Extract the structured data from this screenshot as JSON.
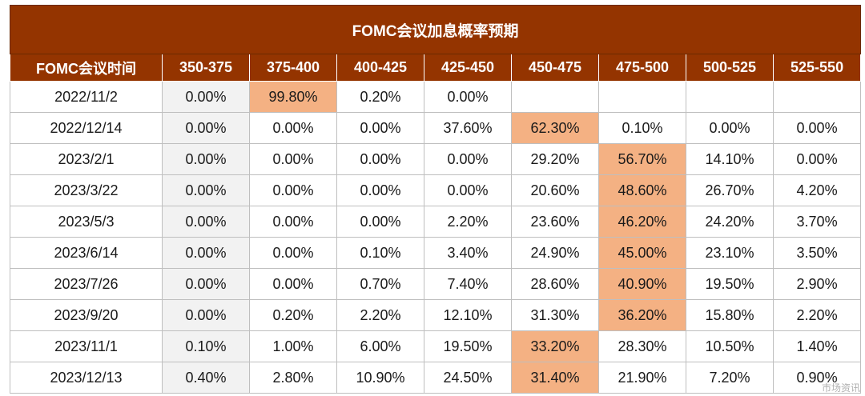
{
  "chart_data": {
    "type": "table",
    "title": "FOMC会议加息概率预期",
    "columns": [
      "FOMC会议时间",
      "350-375",
      "375-400",
      "400-425",
      "425-450",
      "450-475",
      "475-500",
      "500-525",
      "525-550"
    ],
    "rows": [
      {
        "date": "2022/11/2",
        "values": [
          "0.00%",
          "99.80%",
          "0.20%",
          "0.00%",
          "",
          "",
          "",
          ""
        ],
        "highlight": 1
      },
      {
        "date": "2022/12/14",
        "values": [
          "0.00%",
          "0.00%",
          "0.00%",
          "37.60%",
          "62.30%",
          "0.10%",
          "0.00%",
          "0.00%"
        ],
        "highlight": 4
      },
      {
        "date": "2023/2/1",
        "values": [
          "0.00%",
          "0.00%",
          "0.00%",
          "0.00%",
          "29.20%",
          "56.70%",
          "14.10%",
          "0.00%"
        ],
        "highlight": 5
      },
      {
        "date": "2023/3/22",
        "values": [
          "0.00%",
          "0.00%",
          "0.00%",
          "0.00%",
          "20.60%",
          "48.60%",
          "26.70%",
          "4.20%"
        ],
        "highlight": 5
      },
      {
        "date": "2023/5/3",
        "values": [
          "0.00%",
          "0.00%",
          "0.00%",
          "2.20%",
          "23.60%",
          "46.20%",
          "24.20%",
          "3.70%"
        ],
        "highlight": 5
      },
      {
        "date": "2023/6/14",
        "values": [
          "0.00%",
          "0.00%",
          "0.10%",
          "3.40%",
          "24.90%",
          "45.00%",
          "23.10%",
          "3.50%"
        ],
        "highlight": 5
      },
      {
        "date": "2023/7/26",
        "values": [
          "0.00%",
          "0.00%",
          "0.70%",
          "7.40%",
          "28.60%",
          "40.90%",
          "19.50%",
          "2.90%"
        ],
        "highlight": 5
      },
      {
        "date": "2023/9/20",
        "values": [
          "0.00%",
          "0.20%",
          "2.20%",
          "12.10%",
          "31.30%",
          "36.20%",
          "15.80%",
          "2.20%"
        ],
        "highlight": 5
      },
      {
        "date": "2023/11/1",
        "values": [
          "0.10%",
          "1.00%",
          "6.00%",
          "19.50%",
          "33.20%",
          "28.30%",
          "10.50%",
          "1.40%"
        ],
        "highlight": 4
      },
      {
        "date": "2023/12/13",
        "values": [
          "0.40%",
          "2.80%",
          "10.90%",
          "24.50%",
          "31.40%",
          "21.90%",
          "7.20%",
          "0.90%"
        ],
        "highlight": 4
      }
    ],
    "header_color": "#943400",
    "highlight_color": "#f4b183",
    "first_col_fill_color": "#f2f2f2"
  },
  "watermark": "市场资讯"
}
